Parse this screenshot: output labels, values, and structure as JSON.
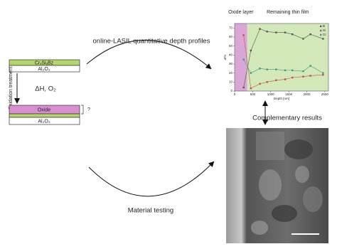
{
  "diagram": {
    "initial_stack": {
      "coating": "CrₓSiᵧBz",
      "substrate": "Al₂O₃"
    },
    "treatment": "Oxidation treatment",
    "conditions": "ΔH, O₂",
    "oxidized_stack": {
      "oxide": "Oxide",
      "unknown": "?",
      "substrate": "Al₂O₃"
    },
    "arrow_top": "online-LASIL quantitative depth profiles",
    "arrow_bottom": "Material testing",
    "complementary": "Complementary results"
  },
  "chart_data": {
    "type": "line",
    "x_label": "Depth [nm]",
    "y_label": "at%",
    "regions": [
      {
        "label": "Oxide layer",
        "from": 0,
        "to": 350,
        "color": "#d9a6d6"
      },
      {
        "label": "Remaining thin film",
        "from": 350,
        "to": 2600,
        "color": "#d3e8b8"
      }
    ],
    "x": [
      250,
      450,
      700,
      900,
      1150,
      1400,
      1600,
      1900,
      2100,
      2450
    ],
    "series": [
      {
        "name": "B",
        "color": "#555555",
        "values": [
          4,
          45,
          69,
          66,
          65,
          65,
          63,
          58,
          63,
          58
        ]
      },
      {
        "name": "Si",
        "color": "#c0504d",
        "values": [
          62,
          3,
          8,
          10,
          12,
          13,
          15,
          16,
          17,
          18
        ]
      },
      {
        "name": "Cr",
        "color": "#3a9a8a",
        "values": [
          35,
          20,
          25,
          24,
          24,
          23,
          23,
          22,
          28,
          20
        ]
      }
    ],
    "xlim": [
      0,
      2600
    ],
    "ylim": [
      0,
      75
    ],
    "xticks": [
      0,
      500,
      1000,
      1500,
      2000,
      2500
    ],
    "yticks": [
      0,
      10,
      20,
      30,
      40,
      50,
      60,
      70
    ],
    "legend": "upper right"
  }
}
